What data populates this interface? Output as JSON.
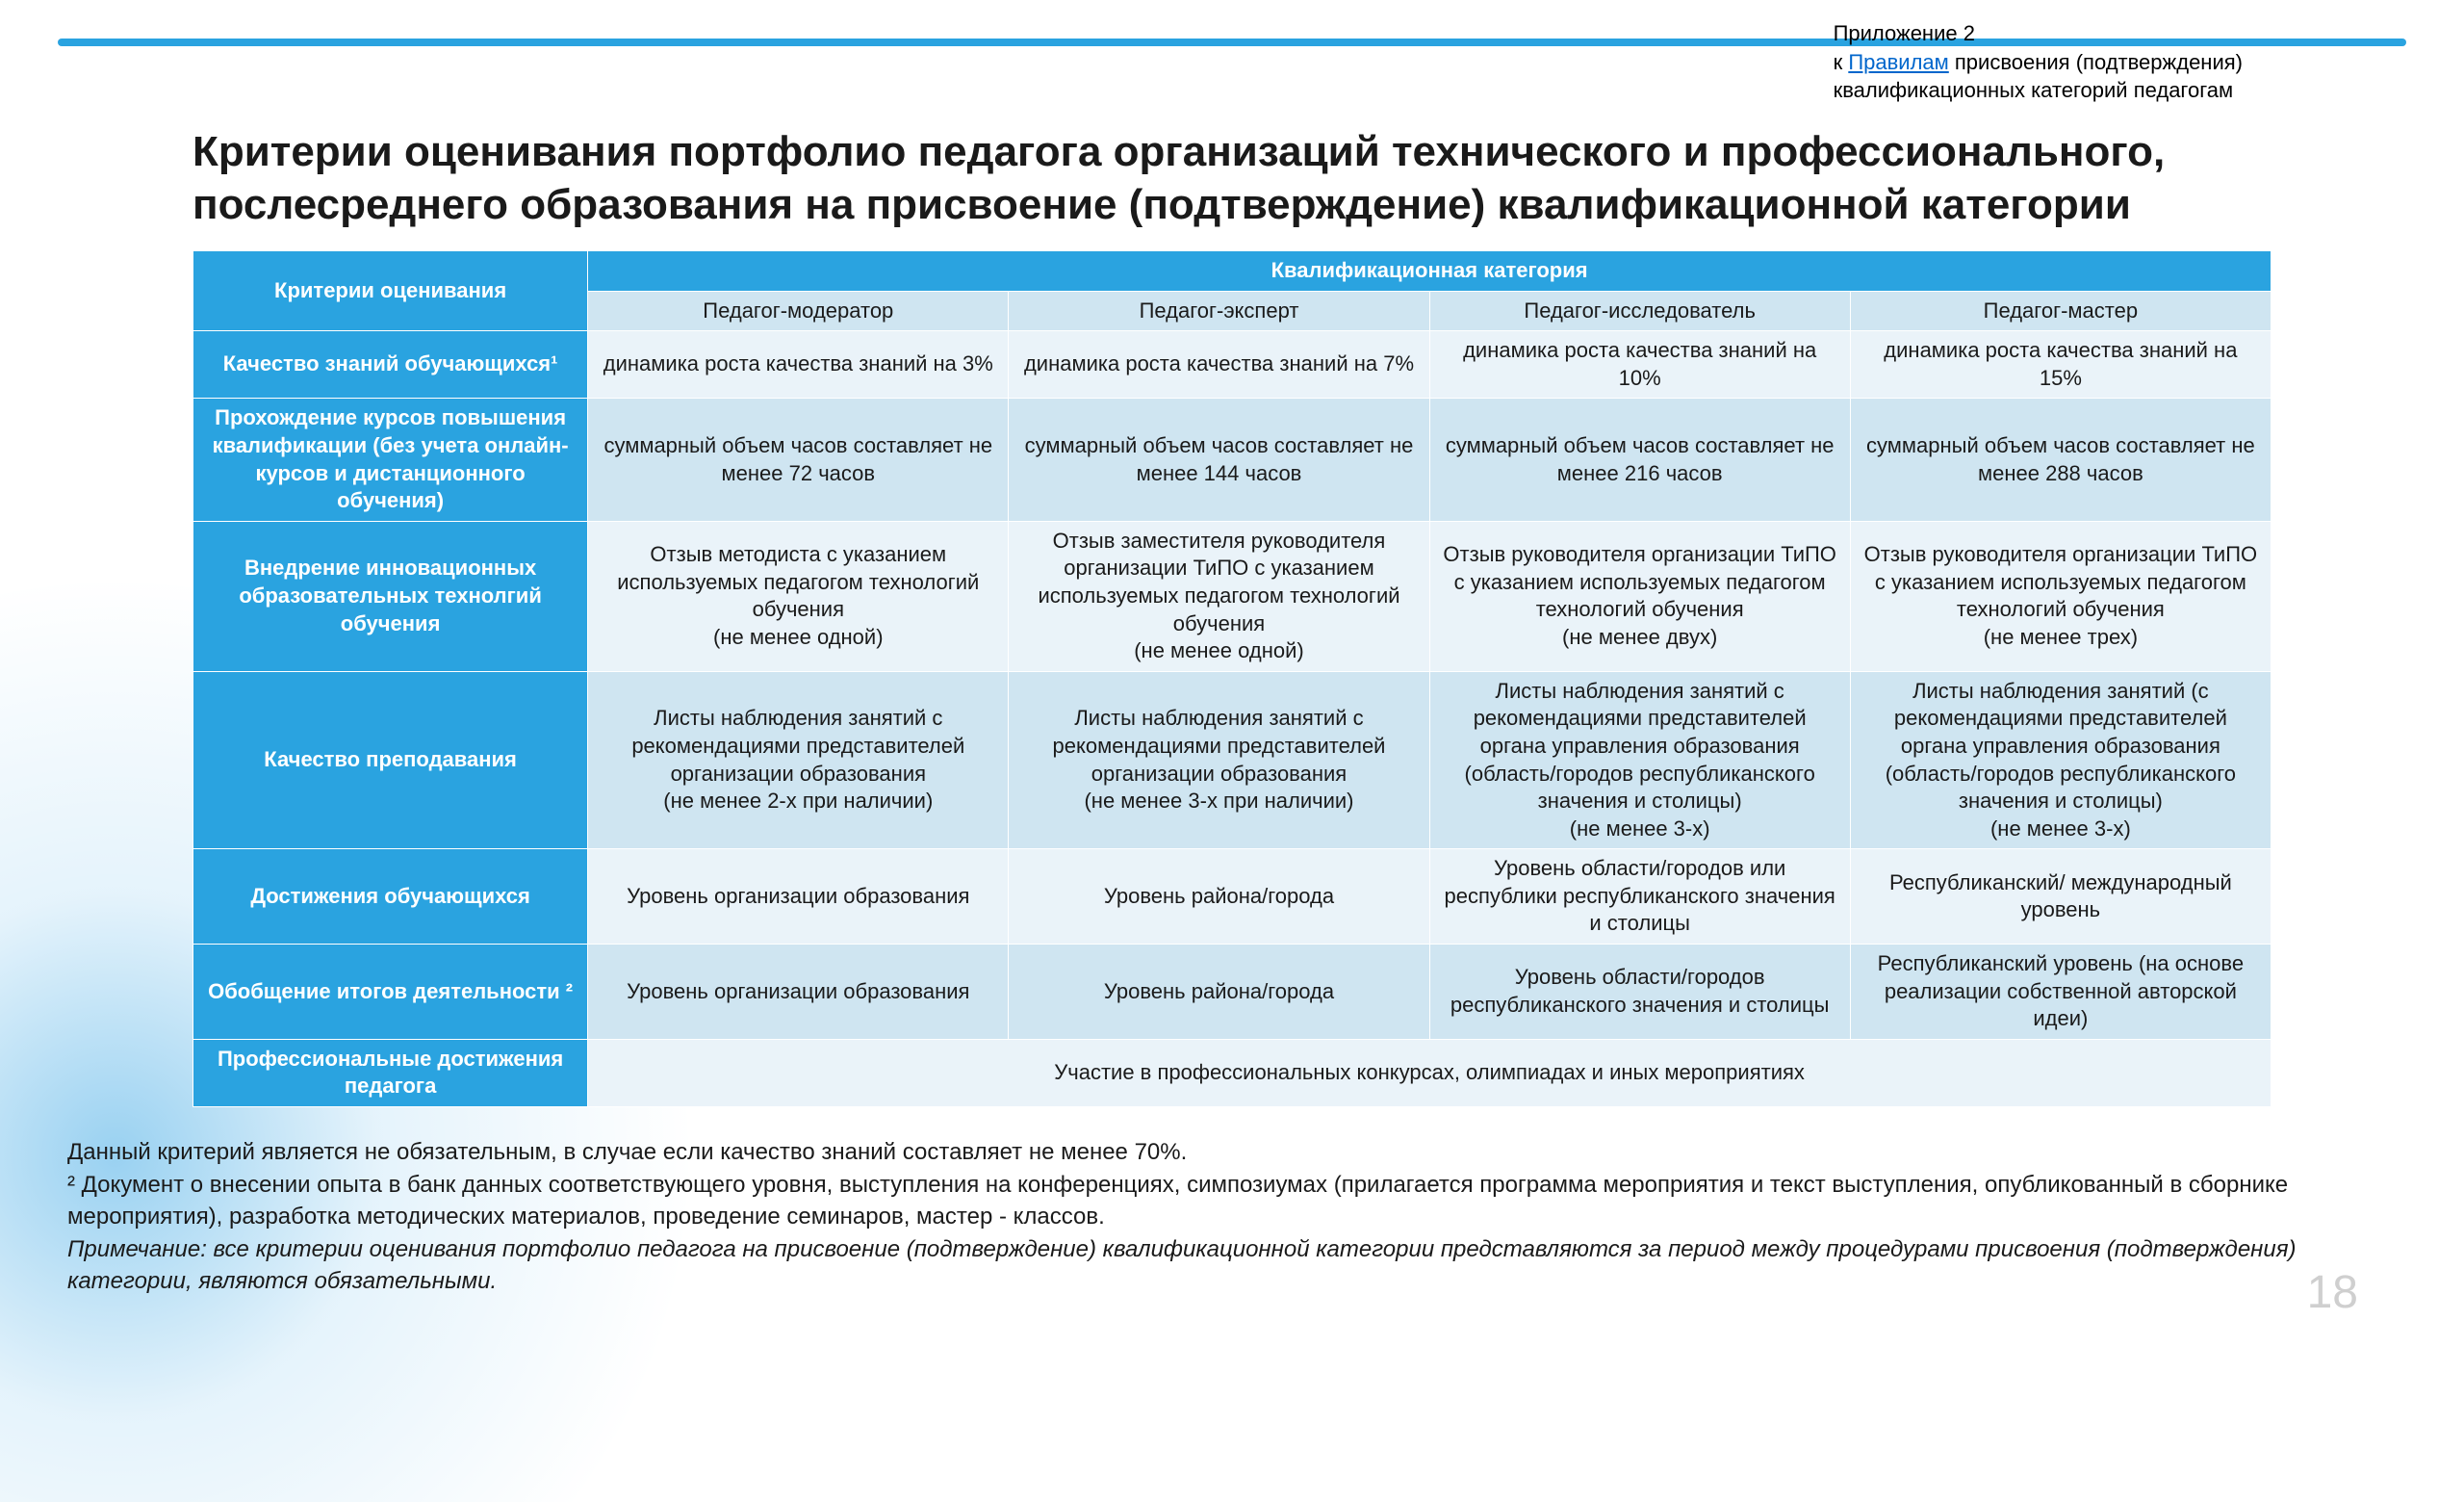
{
  "appendix": {
    "line1": "Приложение 2",
    "line2_prefix": "к ",
    "line2_link": "Правилам",
    "line2_suffix": " присвоения (подтверждения)",
    "line3": "квалификационных категорий педагогам"
  },
  "title": "Критерии оценивания портфолио педагога организаций технического и профессионального, послесреднего образования на присвоение (подтверждение) квалификационной категории",
  "table": {
    "header_col1": "Критерии оценивания",
    "header_span": "Квалификационная категория",
    "cols": [
      "Педагог-модератор",
      "Педагог-эксперт",
      "Педагог-исследователь",
      "Педагог-мастер"
    ],
    "rows": [
      {
        "label": "Качество знаний обучающихся¹",
        "cells": [
          "динамика роста качества знаний на 3%",
          "динамика роста качества знаний на 7%",
          "динамика роста качества знаний на 10%",
          "динамика роста качества знаний на 15%"
        ],
        "shade": "light"
      },
      {
        "label": "Прохождение курсов повышения квалификации (без учета онлайн-курсов и дистанционного обучения)",
        "cells": [
          "суммарный объем часов составляет не менее 72 часов",
          "суммарный объем часов составляет не менее 144 часов",
          "суммарный объем часов составляет не менее 216 часов",
          "суммарный объем часов составляет не менее 288 часов"
        ],
        "shade": "mid"
      },
      {
        "label": "Внедрение инновационных образовательных технолгий обучения",
        "cells": [
          "Отзыв методиста с указанием используемых педагогом технологий обучения\n(не менее одной)",
          "Отзыв заместителя руководителя организации ТиПО с указанием используемых педагогом технологий обучения\n(не менее одной)",
          "Отзыв руководителя организации ТиПО с указанием используемых педагогом технологий обучения\n(не менее двух)",
          "Отзыв руководителя организации ТиПО с указанием используемых педагогом технологий обучения\n(не менее трех)"
        ],
        "shade": "light"
      },
      {
        "label": "Качество преподавания",
        "cells": [
          "Листы наблюдения занятий с рекомендациями представителей организации образования\n(не менее 2-х при наличии)",
          "Листы наблюдения занятий с рекомендациями представителей организации образования\n(не менее 3-х при наличии)",
          "Листы наблюдения занятий с рекомендациями представителей органа управления образования (область/городов республиканского значения и столицы)\n(не менее 3-х)",
          "Листы наблюдения занятий (с рекомендациями представителей органа управления образования (область/городов республиканского значения и столицы)\n(не менее 3-х)"
        ],
        "shade": "mid"
      },
      {
        "label": "Достижения обучающихся",
        "cells": [
          "Уровень организации образования",
          "Уровень района/города",
          "Уровень области/городов или республики республиканского значения и столицы",
          "Республиканский/ международный уровень"
        ],
        "shade": "light"
      },
      {
        "label": "Обобщение итогов деятельности ²",
        "cells": [
          "Уровень организации образования",
          "Уровень района/города",
          "Уровень области/городов республиканского значения и столицы",
          "Республиканский уровень (на основе реализации собственной авторской идеи)"
        ],
        "shade": "mid"
      },
      {
        "label": "Профессиональные достижения педагога",
        "merged": "Участие в профессиональных конкурсах, олимпиадах и иных мероприятиях",
        "shade": "light"
      }
    ]
  },
  "footnotes": {
    "f1": "Данный критерий является не обязательным, в случае если качество знаний составляет не менее 70%.",
    "f2": "² Документ о внесении опыта в банк данных соответствующего уровня, выступления на конференциях, симпозиумах (прилагается программа мероприятия и текст выступления, опубликованный в сборнике мероприятия), разработка методических материалов, проведение семинаров, мастер - классов.",
    "note": "Примечание: все критерии оценивания портфолио педагога на присвоение (подтверждение) квалификационной категории представляются за период между процедурами присвоения (подтверждения) категории, являются обязательными."
  },
  "page_number": "18",
  "colors": {
    "header_bg": "#2aa3e0",
    "subheader_bg": "#cfe5f1",
    "cell_light": "#eaf3f9",
    "cell_mid": "#cfe5f1",
    "text": "#1a1a1a",
    "link": "#0066cc"
  }
}
